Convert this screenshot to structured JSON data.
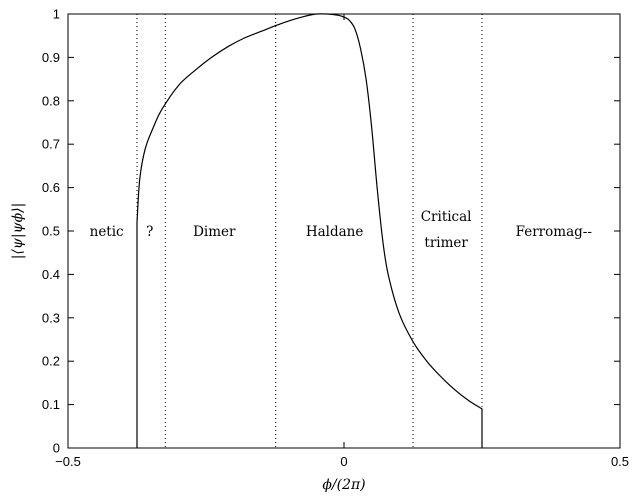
{
  "chart_data": {
    "type": "line",
    "title": "",
    "xlabel": "ϕ/(2π)",
    "ylabel": "|⟨ψ|ψϕ⟩|",
    "xlim": [
      -0.5,
      0.5
    ],
    "ylim": [
      0,
      1
    ],
    "x_ticks": [
      -0.5,
      0,
      0.5
    ],
    "x_tick_labels": [
      "−0.5",
      "0",
      "0.5"
    ],
    "y_ticks": [
      0,
      0.1,
      0.2,
      0.3,
      0.4,
      0.5,
      0.6,
      0.7,
      0.8,
      0.9,
      1
    ],
    "y_tick_labels": [
      "0",
      "0.1",
      "0.2",
      "0.3",
      "0.4",
      "0.5",
      "0.6",
      "0.7",
      "0.8",
      "0.9",
      "1"
    ],
    "grid": false,
    "phase_boundaries": [
      -0.375,
      -0.3238,
      -0.1238,
      0.125,
      0.25
    ],
    "regions": [
      {
        "label": "netic",
        "x": -0.43,
        "y": 0.5
      },
      {
        "label": "?",
        "x": -0.352,
        "y": 0.5
      },
      {
        "label": "Dimer",
        "x": -0.235,
        "y": 0.5
      },
      {
        "label": "Haldane",
        "x": -0.017,
        "y": 0.5
      },
      {
        "label": "Critical",
        "x": 0.185,
        "y": 0.535
      },
      {
        "label": "trimer",
        "x": 0.185,
        "y": 0.475
      },
      {
        "label": "Ferromag--",
        "x": 0.38,
        "y": 0.5
      }
    ],
    "series": [
      {
        "values": [
          [
            -0.375,
            0
          ],
          [
            -0.375,
            0.52
          ],
          [
            -0.37,
            0.62
          ],
          [
            -0.36,
            0.69
          ],
          [
            -0.345,
            0.74
          ],
          [
            -0.33,
            0.78
          ],
          [
            -0.3,
            0.835
          ],
          [
            -0.27,
            0.87
          ],
          [
            -0.24,
            0.9
          ],
          [
            -0.21,
            0.925
          ],
          [
            -0.18,
            0.945
          ],
          [
            -0.15,
            0.96
          ],
          [
            -0.12,
            0.975
          ],
          [
            -0.09,
            0.988
          ],
          [
            -0.07,
            0.995
          ],
          [
            -0.05,
            1.0
          ],
          [
            -0.03,
            1.0
          ],
          [
            -0.01,
            0.997
          ],
          [
            0.0,
            0.993
          ],
          [
            0.01,
            0.985
          ],
          [
            0.02,
            0.965
          ],
          [
            0.03,
            0.92
          ],
          [
            0.04,
            0.85
          ],
          [
            0.05,
            0.74
          ],
          [
            0.06,
            0.6
          ],
          [
            0.07,
            0.48
          ],
          [
            0.08,
            0.4
          ],
          [
            0.1,
            0.31
          ],
          [
            0.125,
            0.245
          ],
          [
            0.15,
            0.2
          ],
          [
            0.175,
            0.165
          ],
          [
            0.2,
            0.135
          ],
          [
            0.225,
            0.11
          ],
          [
            0.25,
            0.09
          ],
          [
            0.25,
            0
          ]
        ]
      }
    ]
  }
}
